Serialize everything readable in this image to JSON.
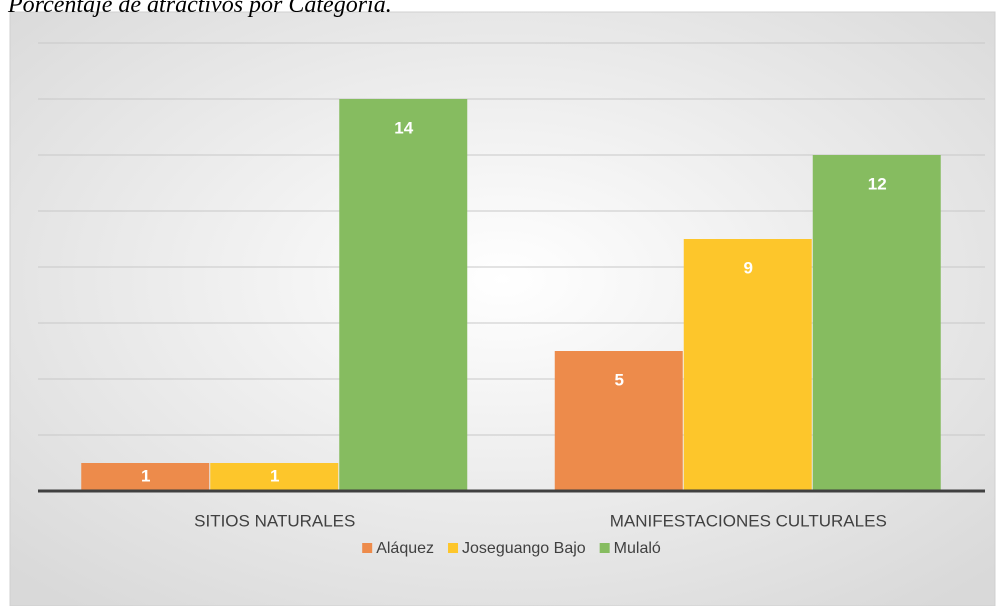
{
  "chart_data": {
    "type": "bar",
    "title": "Porcentaje de atractivos por Categoría.",
    "categories": [
      "SITIOS NATURALES",
      "MANIFESTACIONES CULTURALES"
    ],
    "series": [
      {
        "name": "Aláquez",
        "color": "#ed8b4b",
        "values": [
          1,
          5
        ]
      },
      {
        "name": "Joseguango Bajo",
        "color": "#fdc62b",
        "values": [
          1,
          9
        ]
      },
      {
        "name": "Mulaló",
        "color": "#86bc60",
        "values": [
          14,
          12
        ]
      }
    ],
    "ylim": [
      0,
      16
    ],
    "yticks": [
      0,
      2,
      4,
      6,
      8,
      10,
      12,
      14,
      16
    ],
    "grid": true,
    "legend": "bottom"
  }
}
